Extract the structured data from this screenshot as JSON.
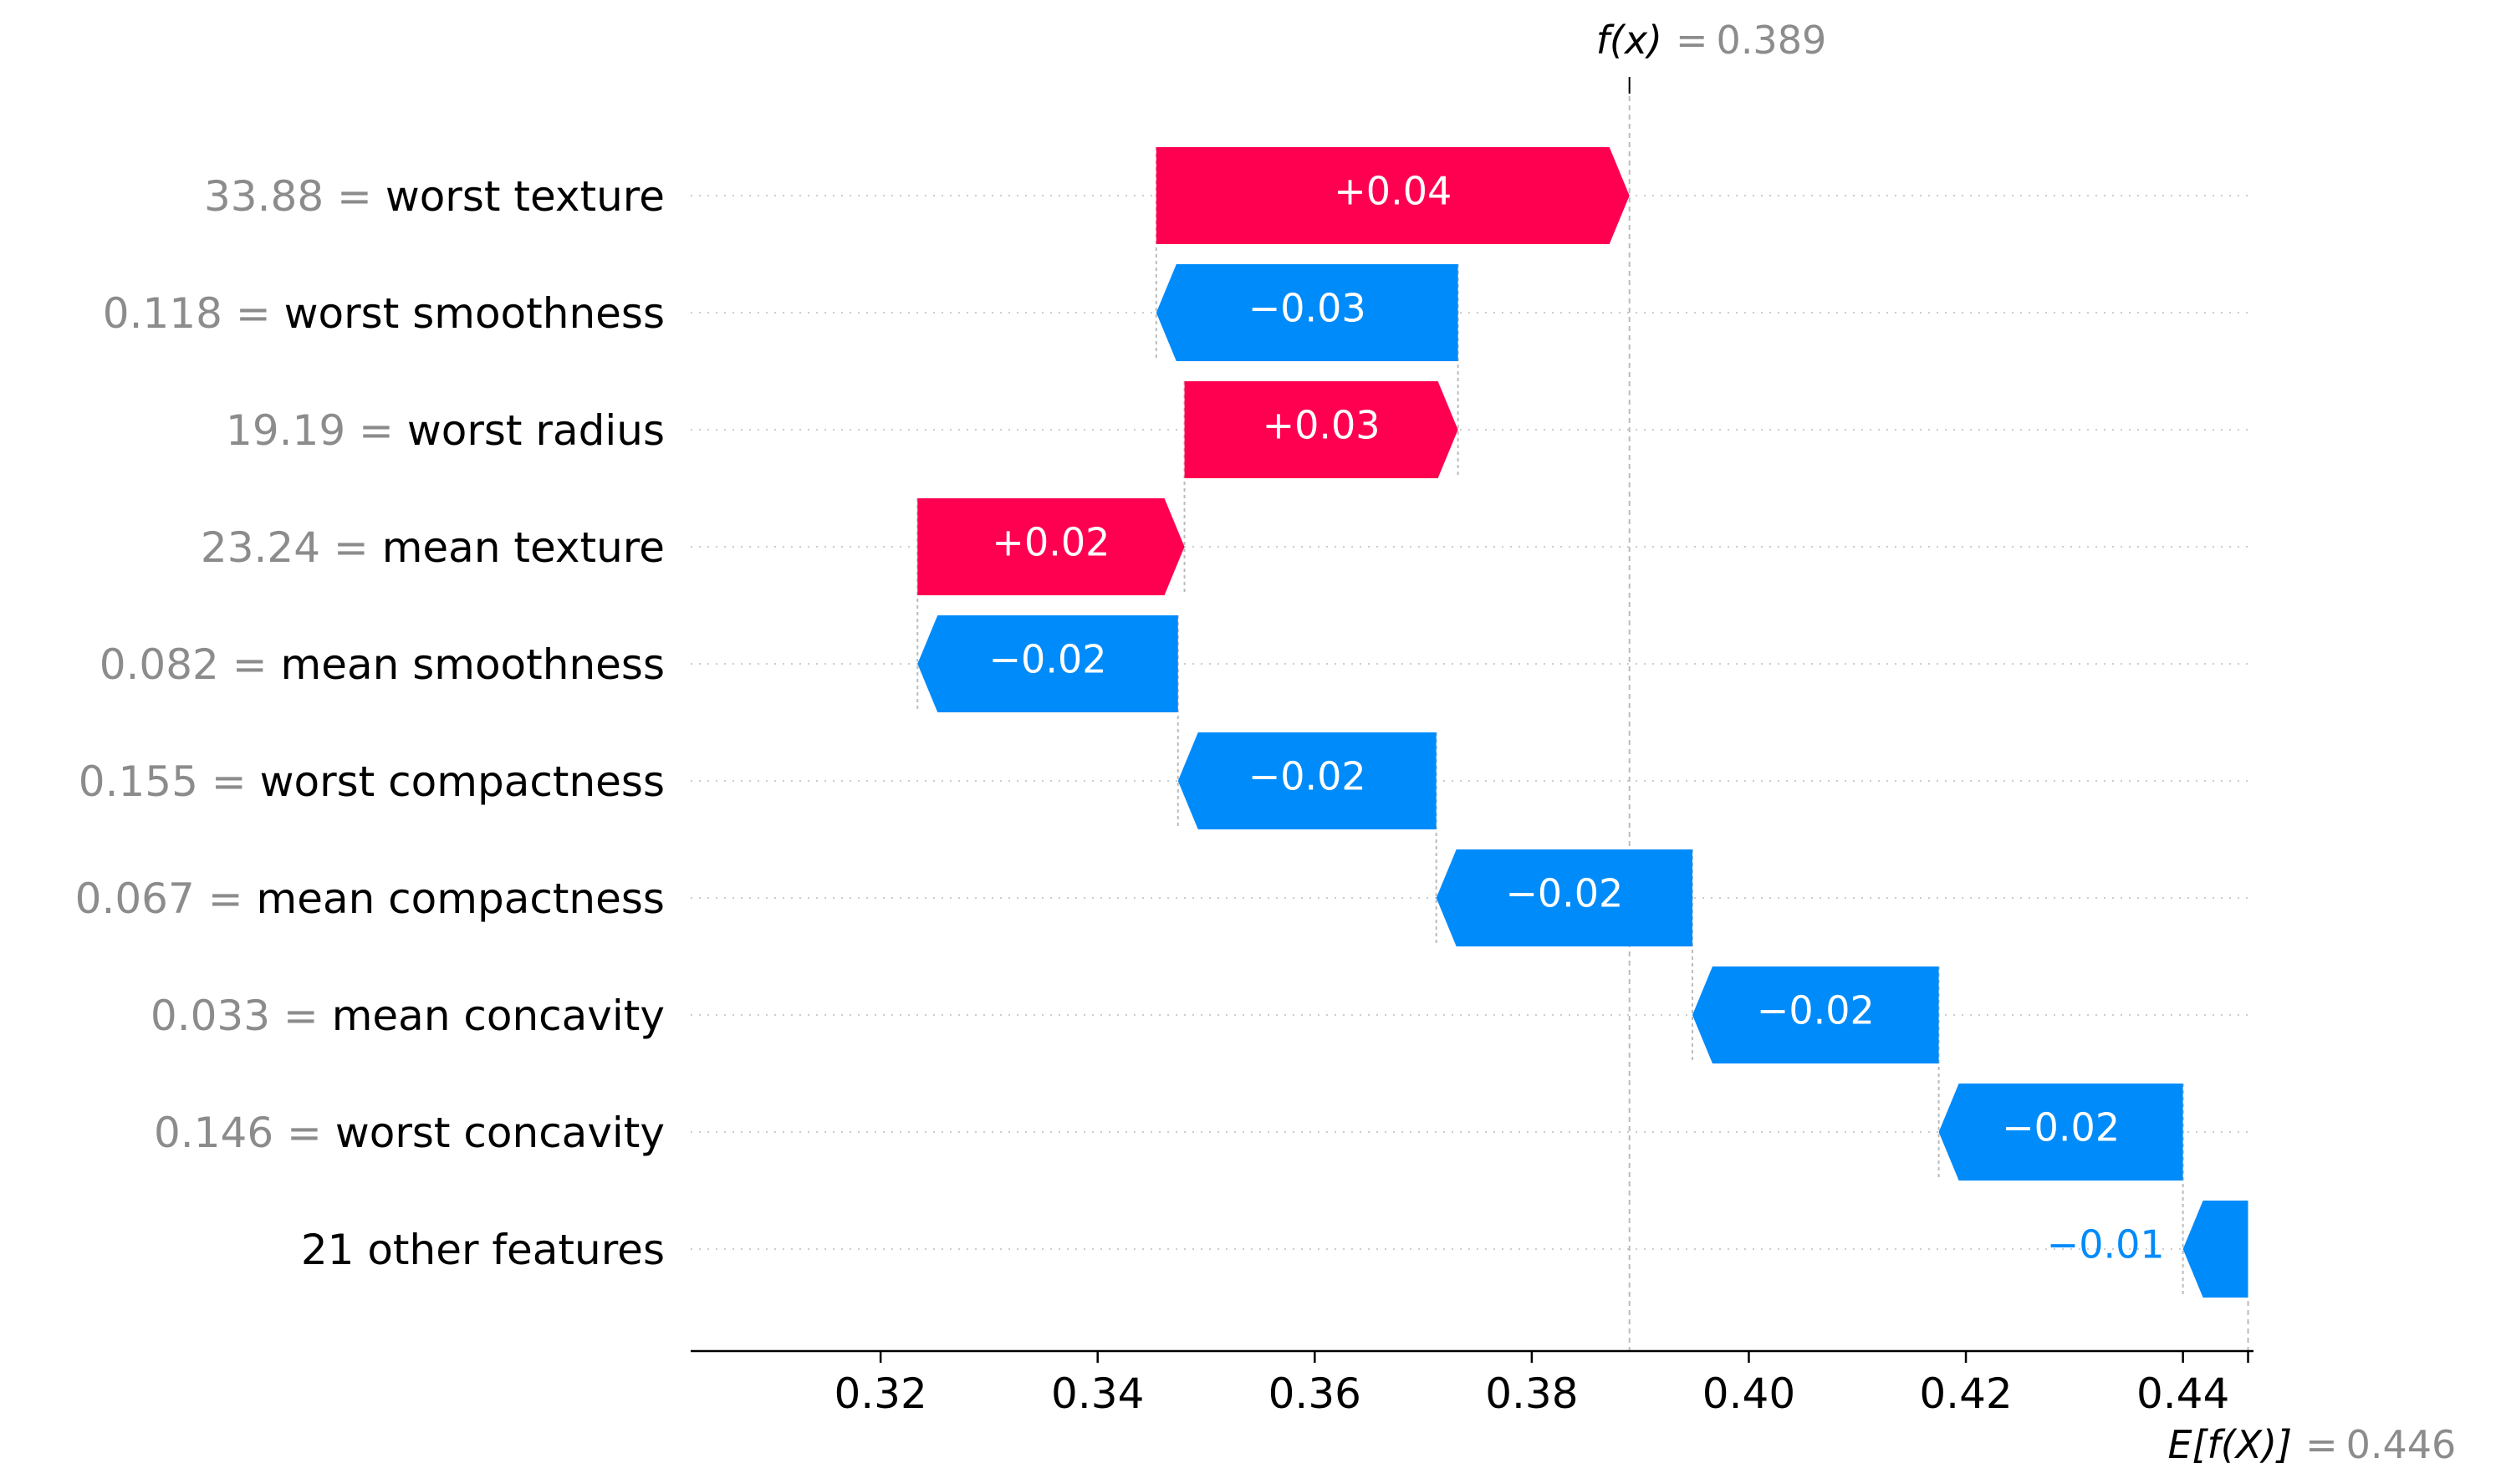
{
  "chart_data": {
    "type": "waterfall",
    "title": "",
    "xlabel": "",
    "fx": {
      "label": "f(x)",
      "eq": "=",
      "value": "0.389",
      "number": 0.389
    },
    "efx": {
      "label": "E[f(X)]",
      "eq": "=",
      "value": "0.446",
      "number": 0.446
    },
    "xlim": [
      0.3025,
      0.4465
    ],
    "xticks": [
      {
        "value": 0.32,
        "label": "0.32"
      },
      {
        "value": 0.34,
        "label": "0.34"
      },
      {
        "value": 0.36,
        "label": "0.36"
      },
      {
        "value": 0.38,
        "label": "0.38"
      },
      {
        "value": 0.4,
        "label": "0.40"
      },
      {
        "value": 0.42,
        "label": "0.42"
      },
      {
        "value": 0.44,
        "label": "0.44"
      }
    ],
    "features": [
      {
        "value": "33.88",
        "name": "worst texture",
        "label": "+0.04",
        "start": 0.3454,
        "end": 0.389,
        "sign": "positive"
      },
      {
        "value": "0.118",
        "name": "worst smoothness",
        "label": "−0.03",
        "start": 0.3732,
        "end": 0.3454,
        "sign": "negative"
      },
      {
        "value": "19.19",
        "name": "worst radius",
        "label": "+0.03",
        "start": 0.348,
        "end": 0.3732,
        "sign": "positive"
      },
      {
        "value": "23.24",
        "name": "mean texture",
        "label": "+0.02",
        "start": 0.3234,
        "end": 0.348,
        "sign": "positive"
      },
      {
        "value": "0.082",
        "name": "mean smoothness",
        "label": "−0.02",
        "start": 0.3474,
        "end": 0.3234,
        "sign": "negative"
      },
      {
        "value": "0.155",
        "name": "worst compactness",
        "label": "−0.02",
        "start": 0.3712,
        "end": 0.3474,
        "sign": "negative"
      },
      {
        "value": "0.067",
        "name": "mean compactness",
        "label": "−0.02",
        "start": 0.3948,
        "end": 0.3712,
        "sign": "negative"
      },
      {
        "value": "0.033",
        "name": "mean concavity",
        "label": "−0.02",
        "start": 0.4175,
        "end": 0.3948,
        "sign": "negative"
      },
      {
        "value": "0.146",
        "name": "worst concavity",
        "label": "−0.02",
        "start": 0.44,
        "end": 0.4175,
        "sign": "negative"
      },
      {
        "value": "",
        "name": "21 other features",
        "label": "−0.01",
        "start": 0.446,
        "end": 0.44,
        "sign": "negative"
      }
    ],
    "colors": {
      "positive": "#ff0051",
      "negative": "#008bfb",
      "muted": "#8c8c8c",
      "guide": "#bbbbbb",
      "grid": "#cccccc"
    }
  }
}
